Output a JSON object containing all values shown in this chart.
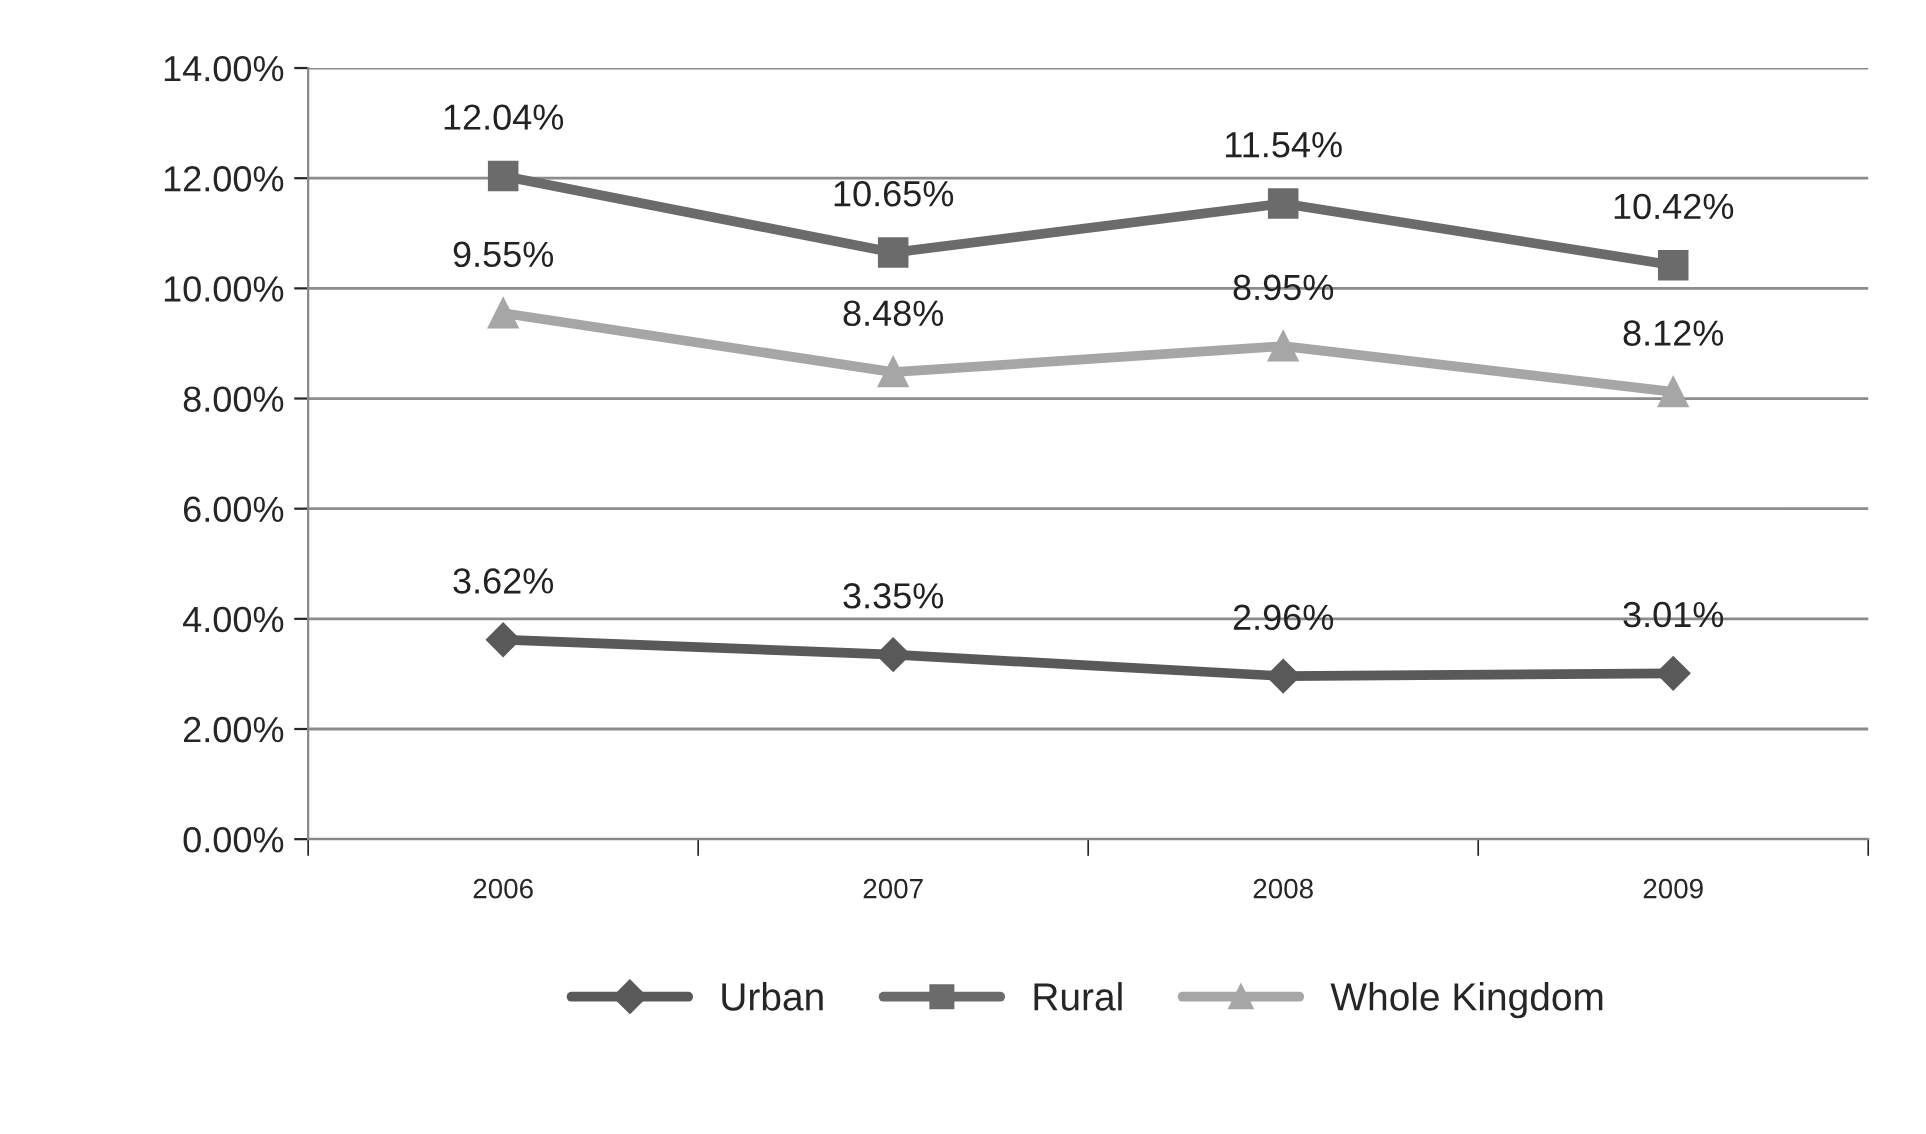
{
  "chart_data": {
    "type": "line",
    "categories": [
      "2006",
      "2007",
      "2008",
      "2009"
    ],
    "series": [
      {
        "name": "Urban",
        "color": "#595959",
        "marker": "diamond",
        "values": [
          3.62,
          3.35,
          2.96,
          3.01
        ],
        "value_labels": [
          "3.62%",
          "3.35%",
          "2.96%",
          "3.01%"
        ]
      },
      {
        "name": "Rural",
        "color": "#6b6b6b",
        "marker": "square",
        "values": [
          12.04,
          10.65,
          11.54,
          10.42
        ],
        "value_labels": [
          "12.04%",
          "10.65%",
          "11.54%",
          "10.42%"
        ]
      },
      {
        "name": "Whole Kingdom",
        "color": "#a6a6a6",
        "marker": "triangle",
        "values": [
          9.55,
          8.48,
          8.95,
          8.12
        ],
        "value_labels": [
          "9.55%",
          "8.48%",
          "8.95%",
          "8.12%"
        ]
      }
    ],
    "ylim": [
      0,
      14
    ],
    "yticks": [
      {
        "value": 0,
        "label": "0.00%"
      },
      {
        "value": 2,
        "label": "2.00%"
      },
      {
        "value": 4,
        "label": "4.00%"
      },
      {
        "value": 6,
        "label": "6.00%"
      },
      {
        "value": 8,
        "label": "8.00%"
      },
      {
        "value": 10,
        "label": "10.00%"
      },
      {
        "value": 12,
        "label": "12.00%"
      },
      {
        "value": 14,
        "label": "14.00%"
      }
    ],
    "grid": "y",
    "legend": "bottom",
    "line_style": "solid"
  }
}
